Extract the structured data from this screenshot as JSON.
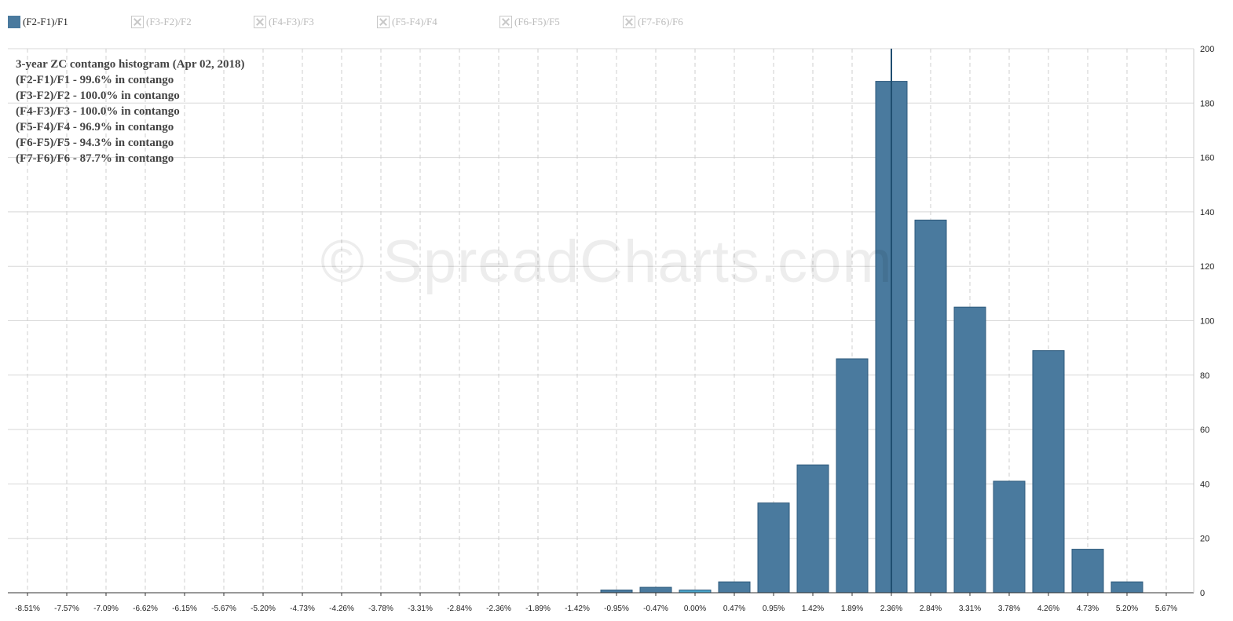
{
  "legend": [
    {
      "label": "(F2-F1)/F1",
      "active": true
    },
    {
      "label": "(F3-F2)/F2",
      "active": false
    },
    {
      "label": "(F4-F3)/F3",
      "active": false
    },
    {
      "label": "(F5-F4)/F4",
      "active": false
    },
    {
      "label": "(F6-F5)/F5",
      "active": false
    },
    {
      "label": "(F7-F6)/F6",
      "active": false
    }
  ],
  "stats": [
    "3-year ZC contango histogram (Apr 02, 2018)",
    "(F2-F1)/F1 - 99.6% in contango",
    "(F3-F2)/F2 - 100.0% in contango",
    "(F4-F3)/F3 - 100.0% in contango",
    "(F5-F4)/F4 - 96.9% in contango",
    "(F6-F5)/F5 - 94.3% in contango",
    "(F7-F6)/F6 - 87.7% in contango"
  ],
  "watermark": "© SpreadCharts.com",
  "chart_data": {
    "type": "bar",
    "categories": [
      "-8.51%",
      "-7.57%",
      "-7.09%",
      "-6.62%",
      "-6.15%",
      "-5.67%",
      "-5.20%",
      "-4.73%",
      "-4.26%",
      "-3.78%",
      "-3.31%",
      "-2.84%",
      "-2.36%",
      "-1.89%",
      "-1.42%",
      "-0.95%",
      "-0.47%",
      "0.00%",
      "0.47%",
      "0.95%",
      "1.42%",
      "1.89%",
      "2.36%",
      "2.84%",
      "3.31%",
      "3.78%",
      "4.26%",
      "4.73%",
      "5.20%",
      "5.67%"
    ],
    "series": [
      {
        "name": "(F2-F1)/F1",
        "values": [
          0,
          0,
          0,
          0,
          0,
          0,
          0,
          0,
          0,
          0,
          0,
          0,
          0,
          0,
          0,
          1,
          2,
          1,
          4,
          33,
          47,
          86,
          188,
          137,
          105,
          41,
          89,
          16,
          4,
          0
        ]
      }
    ],
    "highlight_category": "0.00%",
    "current_value_marker": "2.36%",
    "ylim": [
      0,
      200
    ],
    "yticks": [
      0,
      20,
      40,
      60,
      80,
      100,
      120,
      140,
      160,
      180,
      200
    ],
    "y_axis_side": "right",
    "grid": true,
    "legend_position": "top",
    "colors": {
      "bar": "#4a7a9e",
      "bar_stroke": "#2e5a7c",
      "bar_highlight": "#4aa3c8",
      "marker": "#1f4e70"
    }
  }
}
